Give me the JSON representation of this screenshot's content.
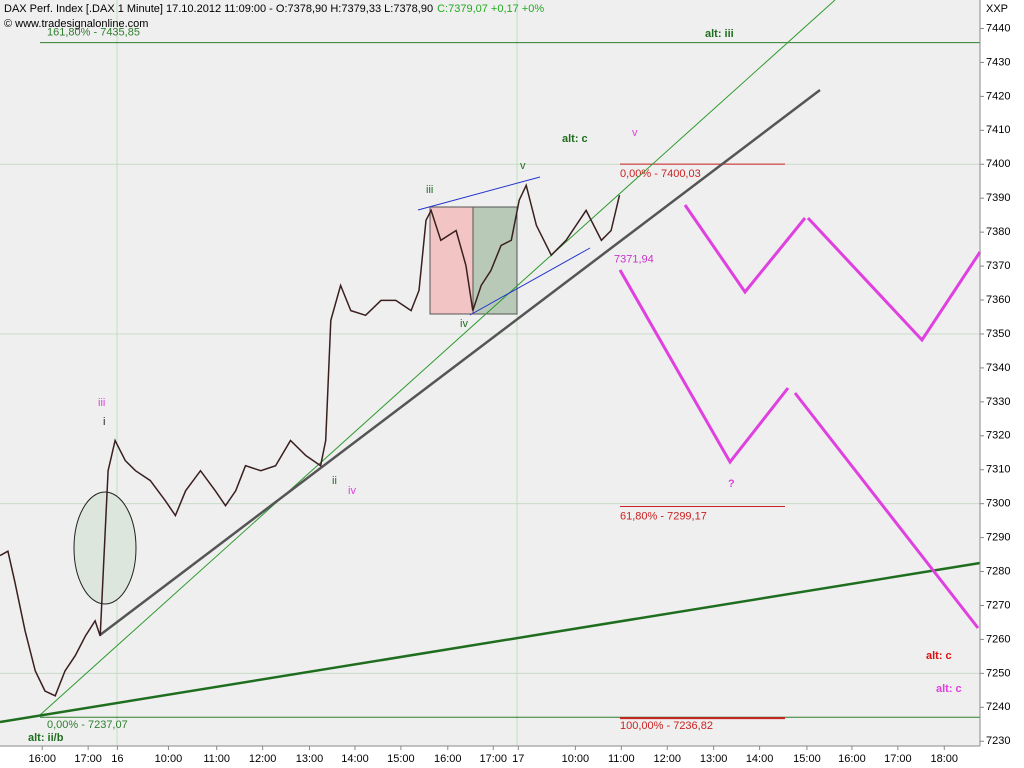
{
  "chart_data": {
    "type": "line",
    "title": "DAX Perf. Index [.DAX  1 Minute] 17.10.2012 11:09:00 - O:7378,90 H:7379,33 L:7378,90",
    "subtitle": "C:7379,07 +0,17 +0%",
    "source": "© www.tradesignalonline.com",
    "axis_label": "XXP",
    "ylim": [
      7228.6,
      7448.4
    ],
    "yticks": [
      7230,
      7240,
      7250,
      7260,
      7270,
      7280,
      7290,
      7300,
      7310,
      7320,
      7330,
      7340,
      7350,
      7360,
      7370,
      7380,
      7390,
      7400,
      7410,
      7420,
      7430,
      7440
    ],
    "xlim": [
      0,
      21.12
    ],
    "xticks": [
      {
        "value": 0.91,
        "label": "16:00"
      },
      {
        "value": 1.9,
        "label": "17:00"
      },
      {
        "value": 2.53,
        "label": "16"
      },
      {
        "value": 3.63,
        "label": "10:00"
      },
      {
        "value": 4.67,
        "label": "11:00"
      },
      {
        "value": 5.66,
        "label": "12:00"
      },
      {
        "value": 6.67,
        "label": "13:00"
      },
      {
        "value": 7.65,
        "label": "14:00"
      },
      {
        "value": 8.64,
        "label": "15:00"
      },
      {
        "value": 9.65,
        "label": "16:00"
      },
      {
        "value": 10.63,
        "label": "17:00"
      },
      {
        "value": 11.17,
        "label": "17"
      },
      {
        "value": 12.4,
        "label": "10:00"
      },
      {
        "value": 13.39,
        "label": "11:00"
      },
      {
        "value": 14.38,
        "label": "12:00"
      },
      {
        "value": 15.38,
        "label": "13:00"
      },
      {
        "value": 16.37,
        "label": "14:00"
      },
      {
        "value": 17.39,
        "label": "15:00"
      },
      {
        "value": 18.36,
        "label": "16:00"
      },
      {
        "value": 19.35,
        "label": "17:00"
      },
      {
        "value": 20.35,
        "label": "18:00"
      }
    ],
    "grid": true,
    "series": [
      {
        "name": "DAX",
        "color": "#3a1f1f",
        "x": [
          0,
          0.17,
          0.32,
          0.54,
          0.76,
          0.97,
          1.19,
          1.4,
          1.62,
          1.84,
          2.05,
          2.16,
          2.33,
          2.48,
          2.7,
          2.92,
          3.24,
          3.56,
          3.78,
          4.0,
          4.32,
          4.64,
          4.86,
          5.08,
          5.29,
          5.62,
          5.94,
          6.26,
          6.59,
          6.91,
          7.02,
          7.13,
          7.34,
          7.56,
          7.88,
          8.21,
          8.53,
          8.86,
          9.03,
          9.18,
          9.29,
          9.5,
          9.83,
          10.04,
          10.19,
          10.37,
          10.58,
          10.8,
          11.02,
          11.19,
          11.34,
          11.56,
          11.88,
          12.2,
          12.63,
          12.96,
          13.17,
          13.35
        ],
        "values": [
          7284.7,
          7286,
          7277,
          7262.5,
          7250.7,
          7244.8,
          7243.4,
          7250.7,
          7255.2,
          7261,
          7265.5,
          7261,
          7309.7,
          7318.6,
          7312.7,
          7309.7,
          7306.8,
          7300.9,
          7296.5,
          7303.8,
          7309.7,
          7303.8,
          7299.4,
          7303.8,
          7311.2,
          7309.7,
          7311.2,
          7318.6,
          7314.2,
          7311.2,
          7318.6,
          7354,
          7364.3,
          7356.9,
          7355.5,
          7359.9,
          7359.9,
          7356.9,
          7362.8,
          7383.5,
          7386.4,
          7377.6,
          7380.5,
          7370.2,
          7356.9,
          7364.3,
          7368.7,
          7376.1,
          7377.6,
          7389.4,
          7393.8,
          7382,
          7373.2,
          7377.6,
          7386.4,
          7377.6,
          7380.5,
          7390.9
        ]
      }
    ],
    "levels": [
      {
        "value": 7435.85,
        "label": "161,80% - 7435,85",
        "color": "#2e7d2e"
      },
      {
        "value": 7237.07,
        "label": "0,00% - 7237,07",
        "color": "#2e7d2e"
      },
      {
        "value": 7400.03,
        "label": "0,00% - 7400,03",
        "color": "#cc2222"
      },
      {
        "value": 7299.17,
        "label": "61,80% - 7299,17",
        "color": "#cc2222"
      },
      {
        "value": 7236.82,
        "label": "100,00% - 7236,82",
        "color": "#cc2222"
      },
      {
        "value": 7371.94,
        "label": "7371,94",
        "color": "#cc33cc"
      }
    ],
    "annotations": [
      "alt: iii",
      "alt: c",
      "v",
      "v",
      "iii",
      "iv",
      "iii",
      "i",
      "ii",
      "iv",
      "?",
      "alt: ii/b",
      "alt: c",
      "alt: c"
    ]
  }
}
